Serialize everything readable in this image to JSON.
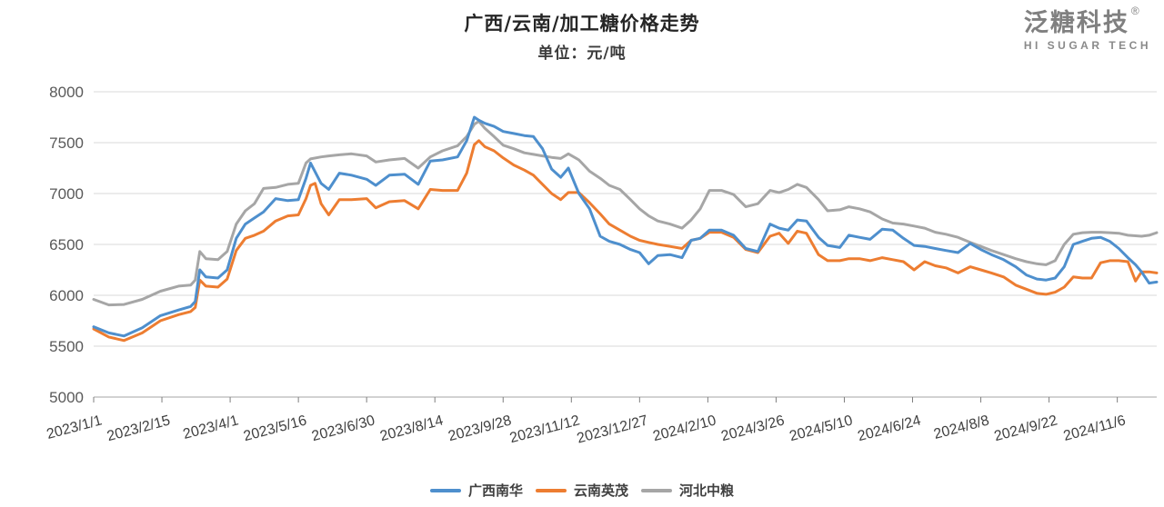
{
  "header": {
    "title_note": "bound from chart_data"
  },
  "logo": {
    "brand": "泛糖科技",
    "reg": "®",
    "tagline": "HI SUGAR TECH"
  },
  "chart_data": {
    "type": "line",
    "title": "广西/云南/加工糖价格走势",
    "subtitle": "单位：元/吨",
    "unit": "元/吨",
    "ylim": [
      5000,
      8000
    ],
    "y_ticks": [
      5000,
      5500,
      6000,
      6500,
      7000,
      7500,
      8000
    ],
    "x_domain_days": [
      0,
      701
    ],
    "x_tick_days": [
      0,
      45,
      90,
      135,
      180,
      225,
      270,
      315,
      360,
      405,
      450,
      495,
      540,
      585,
      630,
      675
    ],
    "x_tick_labels": [
      "2023/1/1",
      "2023/2/15",
      "2023/4/1",
      "2023/5/16",
      "2023/6/30",
      "2023/8/14",
      "2023/9/28",
      "2023/11/12",
      "2023/12/27",
      "2024/2/10",
      "2024/3/26",
      "2024/5/10",
      "2024/6/24",
      "2024/8/8",
      "2024/9/22",
      "2024/11/6"
    ],
    "grid": "horizontal",
    "legend_position": "bottom-center",
    "colors": {
      "grid": "#D9D9D9",
      "axis": "#A6A6A6",
      "tick": "#7F7F7F",
      "x_text": "#404040",
      "y_text": "#595959"
    },
    "series": [
      {
        "name": "广西南华",
        "color": "#4E8FCD",
        "points": [
          [
            0,
            5690
          ],
          [
            10,
            5630
          ],
          [
            20,
            5600
          ],
          [
            32,
            5680
          ],
          [
            44,
            5800
          ],
          [
            56,
            5855
          ],
          [
            64,
            5890
          ],
          [
            67,
            5940
          ],
          [
            70,
            6250
          ],
          [
            74,
            6180
          ],
          [
            82,
            6170
          ],
          [
            88,
            6250
          ],
          [
            94,
            6560
          ],
          [
            100,
            6700
          ],
          [
            106,
            6760
          ],
          [
            112,
            6820
          ],
          [
            120,
            6950
          ],
          [
            128,
            6930
          ],
          [
            135,
            6940
          ],
          [
            140,
            7150
          ],
          [
            143,
            7300
          ],
          [
            150,
            7100
          ],
          [
            155,
            7040
          ],
          [
            162,
            7200
          ],
          [
            170,
            7180
          ],
          [
            180,
            7140
          ],
          [
            186,
            7080
          ],
          [
            195,
            7180
          ],
          [
            205,
            7190
          ],
          [
            214,
            7090
          ],
          [
            222,
            7320
          ],
          [
            230,
            7330
          ],
          [
            240,
            7360
          ],
          [
            246,
            7520
          ],
          [
            251,
            7750
          ],
          [
            254,
            7720
          ],
          [
            258,
            7690
          ],
          [
            264,
            7660
          ],
          [
            270,
            7610
          ],
          [
            277,
            7590
          ],
          [
            284,
            7570
          ],
          [
            290,
            7560
          ],
          [
            296,
            7440
          ],
          [
            302,
            7240
          ],
          [
            308,
            7160
          ],
          [
            313,
            7250
          ],
          [
            320,
            7000
          ],
          [
            327,
            6850
          ],
          [
            334,
            6580
          ],
          [
            340,
            6530
          ],
          [
            347,
            6500
          ],
          [
            354,
            6450
          ],
          [
            360,
            6420
          ],
          [
            366,
            6310
          ],
          [
            372,
            6390
          ],
          [
            380,
            6400
          ],
          [
            388,
            6370
          ],
          [
            394,
            6540
          ],
          [
            400,
            6560
          ],
          [
            406,
            6640
          ],
          [
            414,
            6640
          ],
          [
            422,
            6590
          ],
          [
            430,
            6460
          ],
          [
            438,
            6430
          ],
          [
            446,
            6700
          ],
          [
            452,
            6660
          ],
          [
            458,
            6640
          ],
          [
            464,
            6740
          ],
          [
            470,
            6730
          ],
          [
            478,
            6570
          ],
          [
            484,
            6490
          ],
          [
            492,
            6470
          ],
          [
            498,
            6590
          ],
          [
            505,
            6570
          ],
          [
            512,
            6550
          ],
          [
            520,
            6650
          ],
          [
            527,
            6640
          ],
          [
            534,
            6560
          ],
          [
            541,
            6490
          ],
          [
            548,
            6480
          ],
          [
            555,
            6460
          ],
          [
            562,
            6440
          ],
          [
            570,
            6420
          ],
          [
            578,
            6510
          ],
          [
            585,
            6450
          ],
          [
            592,
            6400
          ],
          [
            600,
            6350
          ],
          [
            608,
            6280
          ],
          [
            615,
            6200
          ],
          [
            622,
            6160
          ],
          [
            628,
            6150
          ],
          [
            634,
            6170
          ],
          [
            640,
            6280
          ],
          [
            646,
            6500
          ],
          [
            652,
            6530
          ],
          [
            658,
            6560
          ],
          [
            664,
            6570
          ],
          [
            670,
            6530
          ],
          [
            676,
            6460
          ],
          [
            682,
            6370
          ],
          [
            687,
            6300
          ],
          [
            691,
            6230
          ],
          [
            696,
            6120
          ],
          [
            701,
            6130
          ]
        ]
      },
      {
        "name": "云南英茂",
        "color": "#ED7D31",
        "points": [
          [
            0,
            5670
          ],
          [
            10,
            5590
          ],
          [
            20,
            5555
          ],
          [
            32,
            5630
          ],
          [
            44,
            5750
          ],
          [
            56,
            5810
          ],
          [
            64,
            5840
          ],
          [
            67,
            5880
          ],
          [
            70,
            6150
          ],
          [
            74,
            6090
          ],
          [
            82,
            6080
          ],
          [
            88,
            6160
          ],
          [
            94,
            6440
          ],
          [
            100,
            6560
          ],
          [
            106,
            6590
          ],
          [
            112,
            6630
          ],
          [
            120,
            6730
          ],
          [
            128,
            6780
          ],
          [
            135,
            6790
          ],
          [
            140,
            6950
          ],
          [
            143,
            7080
          ],
          [
            146,
            7100
          ],
          [
            150,
            6900
          ],
          [
            155,
            6790
          ],
          [
            162,
            6940
          ],
          [
            170,
            6940
          ],
          [
            180,
            6950
          ],
          [
            186,
            6860
          ],
          [
            195,
            6920
          ],
          [
            205,
            6930
          ],
          [
            214,
            6850
          ],
          [
            222,
            7040
          ],
          [
            230,
            7030
          ],
          [
            240,
            7030
          ],
          [
            246,
            7200
          ],
          [
            251,
            7480
          ],
          [
            254,
            7520
          ],
          [
            258,
            7460
          ],
          [
            264,
            7420
          ],
          [
            270,
            7350
          ],
          [
            277,
            7280
          ],
          [
            284,
            7230
          ],
          [
            290,
            7180
          ],
          [
            296,
            7090
          ],
          [
            302,
            7000
          ],
          [
            308,
            6940
          ],
          [
            313,
            7010
          ],
          [
            320,
            7010
          ],
          [
            327,
            6910
          ],
          [
            334,
            6800
          ],
          [
            340,
            6700
          ],
          [
            347,
            6640
          ],
          [
            354,
            6580
          ],
          [
            360,
            6540
          ],
          [
            366,
            6520
          ],
          [
            372,
            6500
          ],
          [
            380,
            6480
          ],
          [
            388,
            6460
          ],
          [
            394,
            6540
          ],
          [
            400,
            6560
          ],
          [
            406,
            6620
          ],
          [
            414,
            6620
          ],
          [
            422,
            6570
          ],
          [
            430,
            6450
          ],
          [
            438,
            6420
          ],
          [
            446,
            6580
          ],
          [
            452,
            6610
          ],
          [
            458,
            6510
          ],
          [
            464,
            6630
          ],
          [
            470,
            6610
          ],
          [
            478,
            6400
          ],
          [
            484,
            6340
          ],
          [
            492,
            6340
          ],
          [
            498,
            6360
          ],
          [
            505,
            6360
          ],
          [
            512,
            6340
          ],
          [
            520,
            6370
          ],
          [
            527,
            6350
          ],
          [
            534,
            6330
          ],
          [
            541,
            6250
          ],
          [
            548,
            6330
          ],
          [
            555,
            6290
          ],
          [
            562,
            6270
          ],
          [
            570,
            6220
          ],
          [
            578,
            6280
          ],
          [
            585,
            6250
          ],
          [
            592,
            6220
          ],
          [
            600,
            6180
          ],
          [
            608,
            6100
          ],
          [
            615,
            6060
          ],
          [
            622,
            6020
          ],
          [
            628,
            6010
          ],
          [
            634,
            6030
          ],
          [
            640,
            6080
          ],
          [
            646,
            6180
          ],
          [
            652,
            6170
          ],
          [
            658,
            6170
          ],
          [
            664,
            6320
          ],
          [
            670,
            6340
          ],
          [
            676,
            6340
          ],
          [
            682,
            6330
          ],
          [
            687,
            6140
          ],
          [
            691,
            6230
          ],
          [
            696,
            6230
          ],
          [
            701,
            6220
          ]
        ]
      },
      {
        "name": "河北中粮",
        "color": "#A6A6A6",
        "points": [
          [
            0,
            5960
          ],
          [
            10,
            5905
          ],
          [
            20,
            5910
          ],
          [
            32,
            5960
          ],
          [
            44,
            6040
          ],
          [
            56,
            6090
          ],
          [
            64,
            6100
          ],
          [
            67,
            6150
          ],
          [
            70,
            6430
          ],
          [
            74,
            6360
          ],
          [
            82,
            6350
          ],
          [
            88,
            6430
          ],
          [
            94,
            6700
          ],
          [
            100,
            6830
          ],
          [
            106,
            6900
          ],
          [
            112,
            7050
          ],
          [
            120,
            7060
          ],
          [
            128,
            7090
          ],
          [
            135,
            7100
          ],
          [
            140,
            7300
          ],
          [
            143,
            7340
          ],
          [
            150,
            7360
          ],
          [
            155,
            7370
          ],
          [
            162,
            7380
          ],
          [
            170,
            7390
          ],
          [
            180,
            7370
          ],
          [
            186,
            7310
          ],
          [
            195,
            7330
          ],
          [
            205,
            7345
          ],
          [
            214,
            7250
          ],
          [
            222,
            7360
          ],
          [
            230,
            7420
          ],
          [
            240,
            7470
          ],
          [
            246,
            7560
          ],
          [
            251,
            7680
          ],
          [
            254,
            7710
          ],
          [
            258,
            7640
          ],
          [
            264,
            7560
          ],
          [
            270,
            7475
          ],
          [
            277,
            7440
          ],
          [
            284,
            7400
          ],
          [
            290,
            7385
          ],
          [
            296,
            7370
          ],
          [
            302,
            7355
          ],
          [
            308,
            7345
          ],
          [
            313,
            7390
          ],
          [
            320,
            7330
          ],
          [
            327,
            7220
          ],
          [
            334,
            7150
          ],
          [
            340,
            7080
          ],
          [
            347,
            7040
          ],
          [
            354,
            6940
          ],
          [
            360,
            6850
          ],
          [
            366,
            6780
          ],
          [
            372,
            6730
          ],
          [
            380,
            6700
          ],
          [
            388,
            6660
          ],
          [
            394,
            6740
          ],
          [
            400,
            6850
          ],
          [
            406,
            7030
          ],
          [
            414,
            7030
          ],
          [
            422,
            6990
          ],
          [
            430,
            6870
          ],
          [
            438,
            6900
          ],
          [
            446,
            7030
          ],
          [
            452,
            7010
          ],
          [
            458,
            7040
          ],
          [
            464,
            7090
          ],
          [
            470,
            7060
          ],
          [
            478,
            6940
          ],
          [
            484,
            6830
          ],
          [
            492,
            6840
          ],
          [
            498,
            6870
          ],
          [
            505,
            6850
          ],
          [
            512,
            6820
          ],
          [
            520,
            6750
          ],
          [
            527,
            6710
          ],
          [
            534,
            6700
          ],
          [
            541,
            6680
          ],
          [
            548,
            6660
          ],
          [
            555,
            6620
          ],
          [
            562,
            6600
          ],
          [
            570,
            6570
          ],
          [
            578,
            6520
          ],
          [
            585,
            6480
          ],
          [
            592,
            6440
          ],
          [
            600,
            6400
          ],
          [
            608,
            6360
          ],
          [
            615,
            6330
          ],
          [
            622,
            6310
          ],
          [
            628,
            6300
          ],
          [
            634,
            6340
          ],
          [
            640,
            6500
          ],
          [
            646,
            6600
          ],
          [
            652,
            6615
          ],
          [
            658,
            6620
          ],
          [
            664,
            6620
          ],
          [
            670,
            6615
          ],
          [
            676,
            6610
          ],
          [
            682,
            6590
          ],
          [
            687,
            6585
          ],
          [
            691,
            6580
          ],
          [
            696,
            6590
          ],
          [
            701,
            6615
          ]
        ]
      }
    ]
  }
}
